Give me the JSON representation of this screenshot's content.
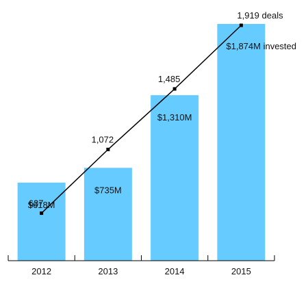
{
  "chart_data": {
    "type": "bar",
    "categories": [
      "2012",
      "2013",
      "2014",
      "2015"
    ],
    "series": [
      {
        "kind": "bar",
        "values": [
          618,
          735,
          1310,
          1874
        ],
        "labels": [
          "$618M",
          "$735M",
          "$1,310M",
          "$1,874M invested"
        ],
        "color": "#66CCFF"
      },
      {
        "kind": "line",
        "values": [
          637,
          1072,
          1485,
          1919
        ],
        "labels": [
          "637",
          "1,072",
          "1,485",
          "1,919 deals"
        ],
        "color": "#000000"
      }
    ],
    "grid": false,
    "legend": "none"
  }
}
